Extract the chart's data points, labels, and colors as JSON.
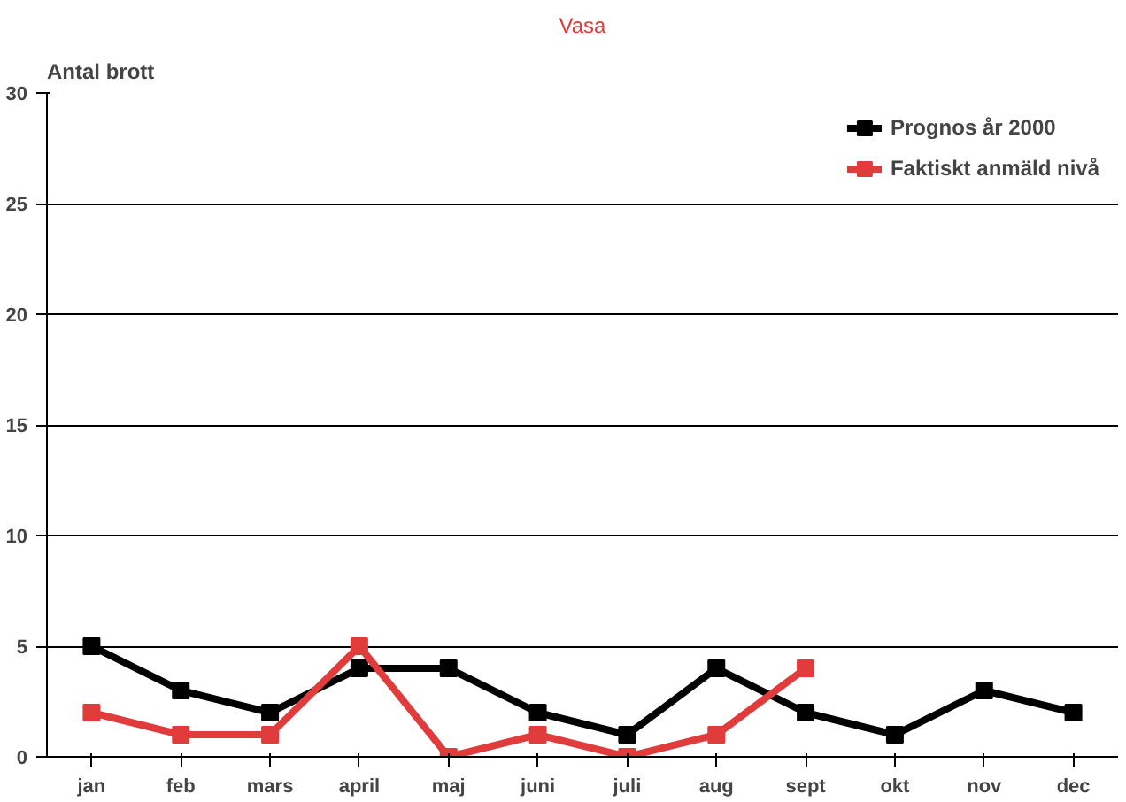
{
  "chart_data": {
    "type": "line",
    "title": "Vasa",
    "ylabel": "Antal brott",
    "categories": [
      "jan",
      "feb",
      "mars",
      "april",
      "maj",
      "juni",
      "juli",
      "aug",
      "sept",
      "okt",
      "nov",
      "dec"
    ],
    "series": [
      {
        "name": "Prognos år 2000",
        "color": "#000000",
        "values": [
          5,
          3,
          2,
          4,
          4,
          2,
          1,
          4,
          2,
          1,
          3,
          2
        ]
      },
      {
        "name": "Faktiskt anmäld nivå",
        "color": "#e03c3c",
        "values": [
          2,
          1,
          1,
          5,
          0,
          1,
          0,
          1,
          4,
          null,
          null,
          null
        ]
      }
    ],
    "ylim": [
      0,
      30
    ],
    "yticks": [
      0,
      5,
      10,
      15,
      20,
      25,
      30
    ],
    "grid": "y",
    "legend": "top right",
    "marker": "square",
    "line_style": "solid"
  }
}
